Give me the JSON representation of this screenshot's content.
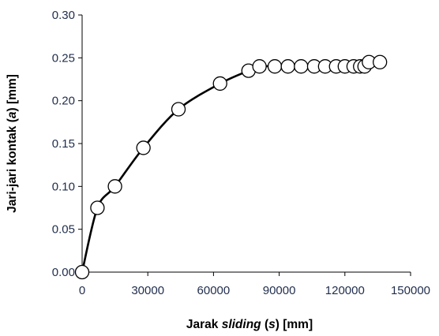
{
  "chart_data": {
    "type": "scatter",
    "xlabel": {
      "prefix": "Jarak ",
      "italic": "sliding",
      "middle": " (",
      "italic2": "s",
      "suffix": ") [mm]"
    },
    "ylabel": {
      "prefix": "Jari-jari kontak (",
      "italic": "a",
      "suffix": ") [mm]"
    },
    "xlim": [
      0,
      150000
    ],
    "ylim": [
      0,
      0.3
    ],
    "x_ticks": [
      "0",
      "30000",
      "60000",
      "90000",
      "120000",
      "150000"
    ],
    "y_ticks": [
      "0.00",
      "0.05",
      "0.10",
      "0.15",
      "0.20",
      "0.25",
      "0.30"
    ],
    "x_tick_values": [
      0,
      30000,
      60000,
      90000,
      120000,
      150000
    ],
    "y_tick_values": [
      0,
      0.05,
      0.1,
      0.15,
      0.2,
      0.25,
      0.3
    ],
    "grid": false,
    "legend": "none",
    "line_style": "smooth",
    "marker": "open-circle",
    "series": [
      {
        "x": [
          0,
          7000,
          15000,
          28000,
          44000,
          63000,
          76000,
          81000,
          88000,
          94000,
          100000,
          106000,
          111000,
          116000,
          120000,
          124000,
          127000,
          129000,
          131000,
          136000
        ],
        "y": [
          0.0,
          0.075,
          0.1,
          0.145,
          0.19,
          0.22,
          0.235,
          0.24,
          0.24,
          0.24,
          0.24,
          0.24,
          0.24,
          0.24,
          0.24,
          0.24,
          0.24,
          0.24,
          0.245,
          0.245
        ]
      }
    ]
  },
  "colors": {
    "tick_label": "#1f2d4d",
    "axis": "#000000",
    "marker_fill": "#ffffff",
    "line": "#000000"
  }
}
